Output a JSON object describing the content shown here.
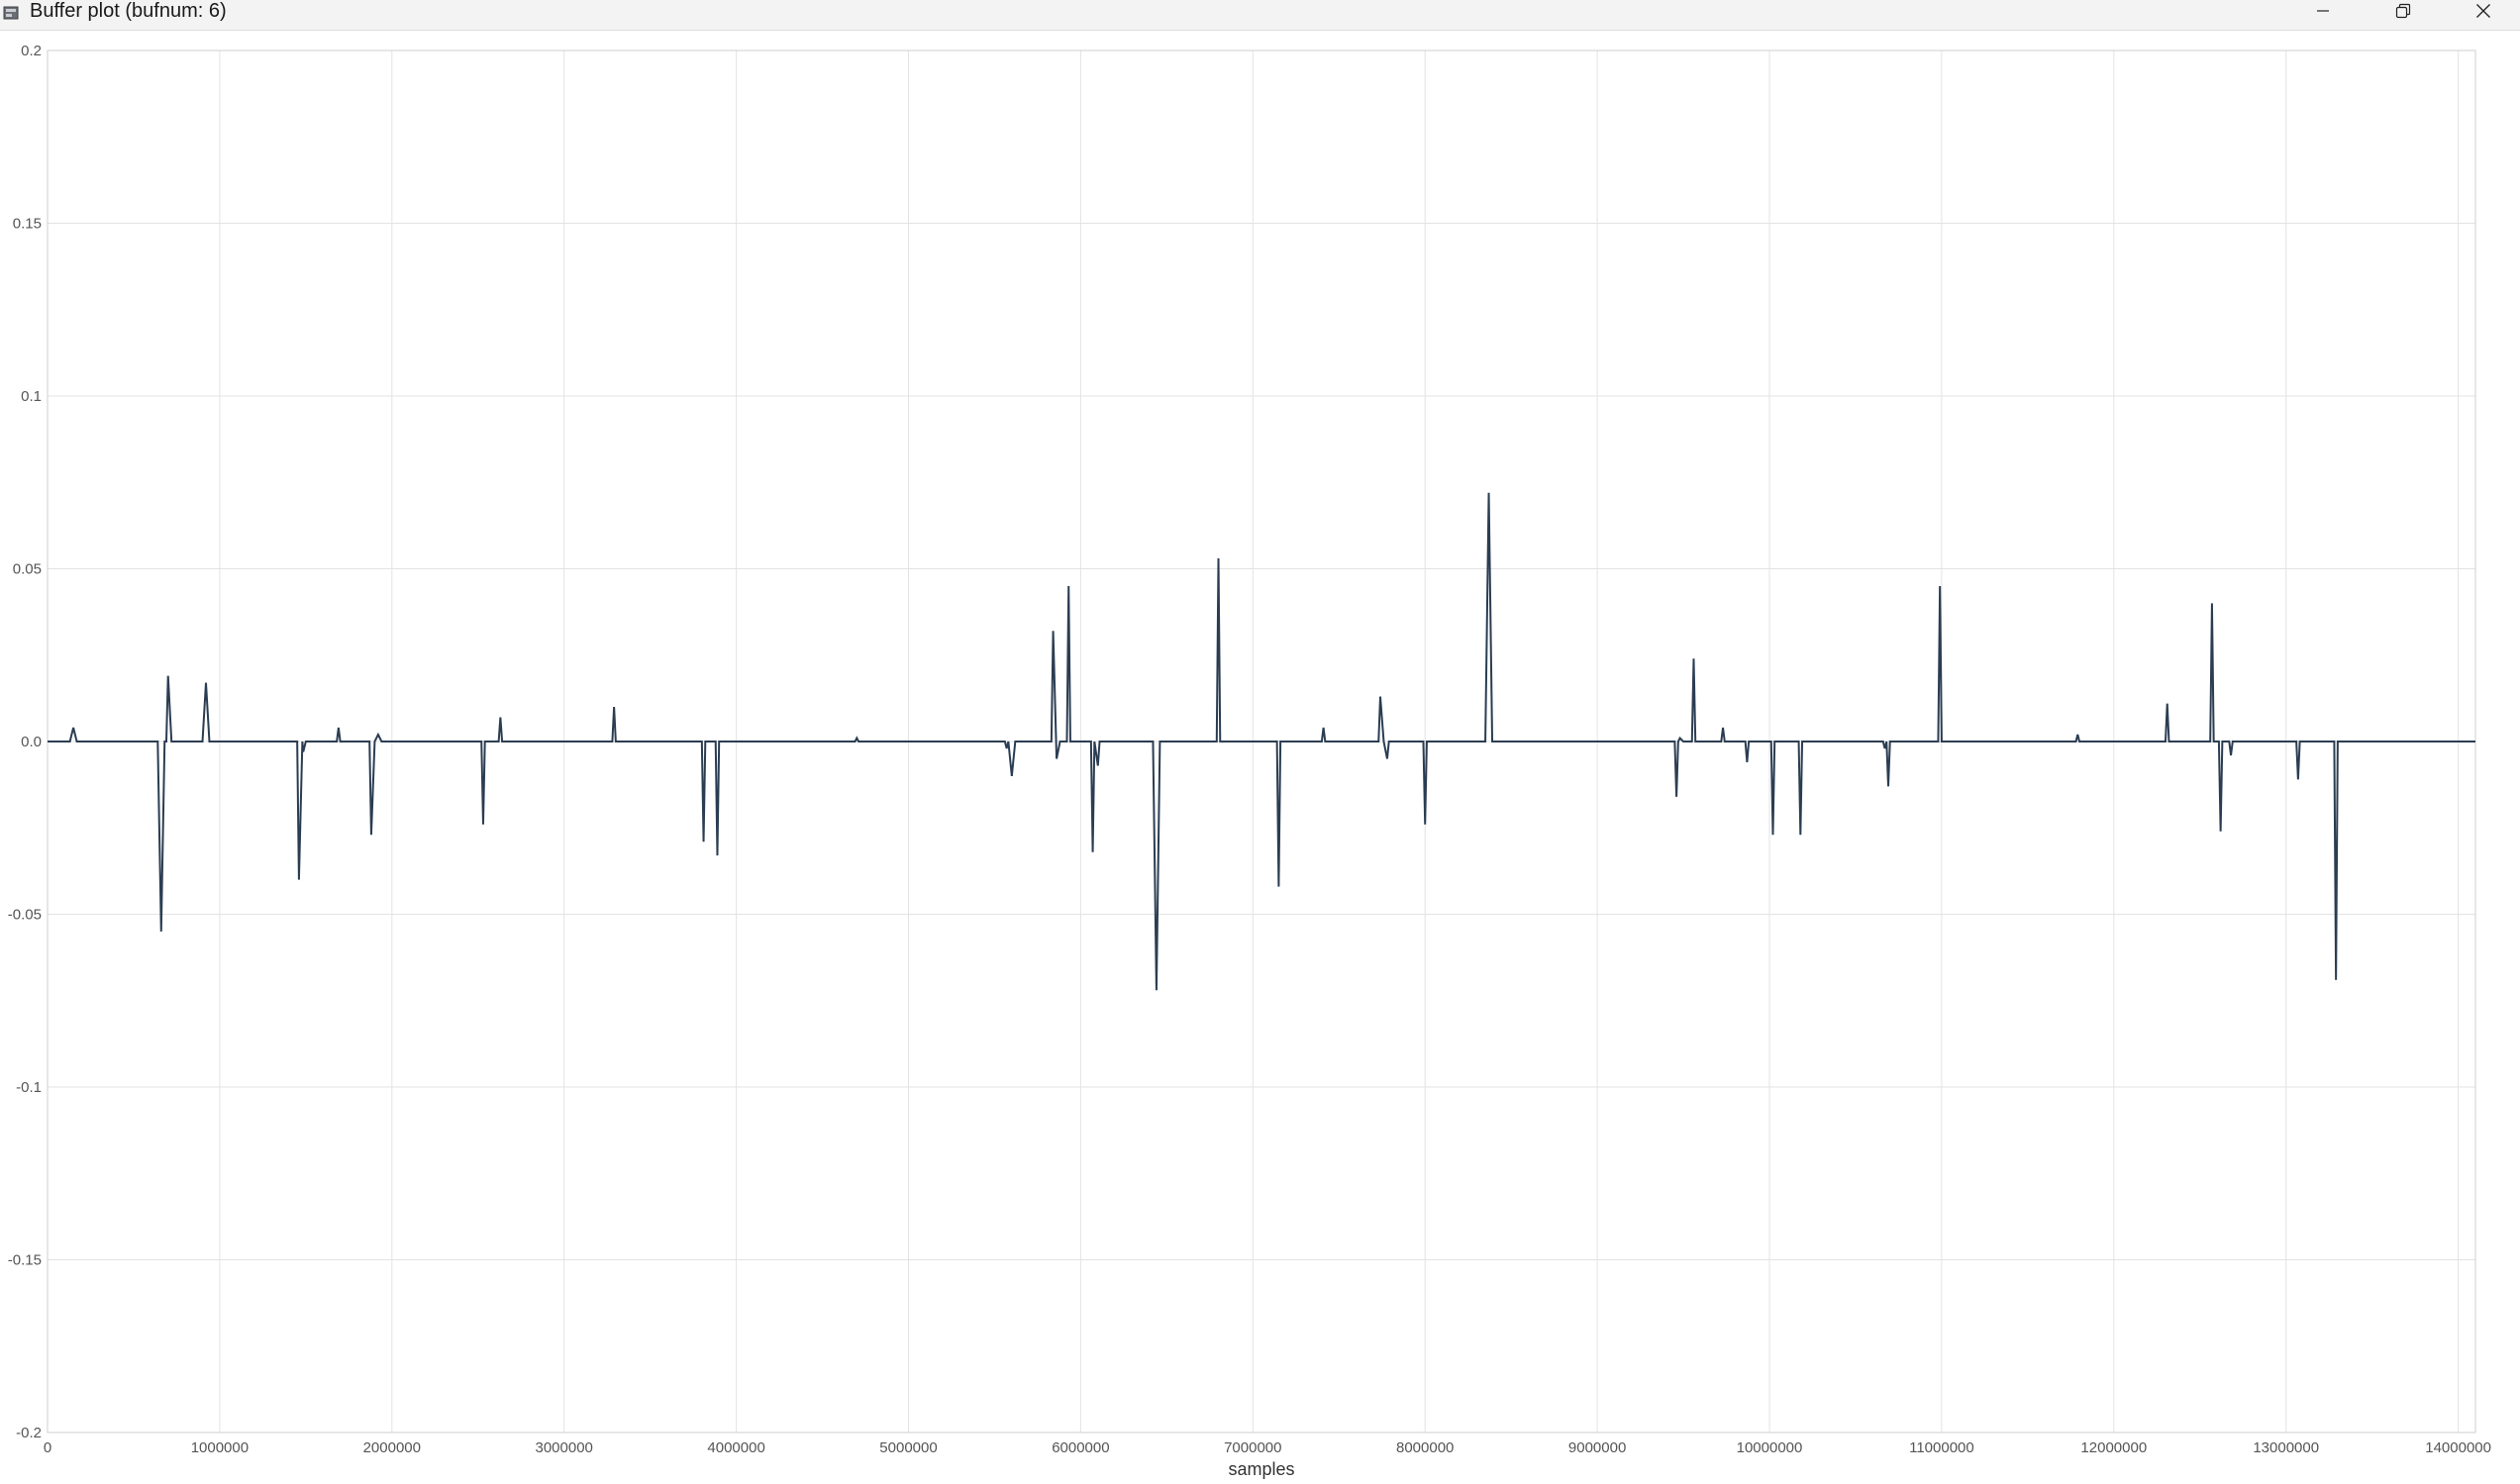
{
  "window": {
    "title": "Buffer plot (bufnum: 6)",
    "controls": [
      "minimize-icon",
      "restore-icon",
      "close-icon"
    ]
  },
  "chart_data": {
    "type": "line",
    "title": "",
    "xlabel": "samples",
    "ylabel": "",
    "xlim": [
      0,
      14100000
    ],
    "ylim": [
      -0.2,
      0.2
    ],
    "grid": true,
    "x_ticks": [
      0,
      1000000,
      2000000,
      3000000,
      4000000,
      5000000,
      6000000,
      7000000,
      8000000,
      9000000,
      10000000,
      11000000,
      12000000,
      13000000,
      14000000
    ],
    "x_tick_labels": [
      "0",
      "1000000",
      "2000000",
      "3000000",
      "4000000",
      "5000000",
      "6000000",
      "7000000",
      "8000000",
      "9000000",
      "10000000",
      "11000000",
      "12000000",
      "13000000",
      "14000000"
    ],
    "y_ticks": [
      0.2,
      0.15,
      0.1,
      0.05,
      0.0,
      -0.05,
      -0.1,
      -0.15,
      -0.2
    ],
    "y_tick_labels": [
      "0.2",
      "0.15",
      "0.1",
      "0.05",
      "0.0",
      "-0.05",
      "-0.1",
      "-0.15",
      "-0.2"
    ],
    "line_color": "#2b3d52",
    "grid_color": "#e3e3e3",
    "series": [
      {
        "values": [
          [
            0,
            0
          ],
          [
            130000,
            0
          ],
          [
            150000,
            0.004
          ],
          [
            170000,
            0
          ],
          [
            640000,
            0
          ],
          [
            660000,
            -0.055
          ],
          [
            680000,
            0
          ],
          [
            690000,
            0
          ],
          [
            700000,
            0.019
          ],
          [
            720000,
            0
          ],
          [
            900000,
            0
          ],
          [
            920000,
            0.017
          ],
          [
            940000,
            0
          ],
          [
            1450000,
            0
          ],
          [
            1460000,
            -0.04
          ],
          [
            1480000,
            0
          ],
          [
            1485000,
            -0.003
          ],
          [
            1500000,
            0
          ],
          [
            1680000,
            0
          ],
          [
            1690000,
            0.004
          ],
          [
            1700000,
            0
          ],
          [
            1870000,
            0
          ],
          [
            1880000,
            -0.027
          ],
          [
            1900000,
            0
          ],
          [
            1920000,
            0.002
          ],
          [
            1940000,
            0
          ],
          [
            2520000,
            0
          ],
          [
            2530000,
            -0.024
          ],
          [
            2540000,
            0
          ],
          [
            2620000,
            0
          ],
          [
            2630000,
            0.007
          ],
          [
            2640000,
            0
          ],
          [
            3280000,
            0
          ],
          [
            3290000,
            0.01
          ],
          [
            3300000,
            0
          ],
          [
            3800000,
            0
          ],
          [
            3810000,
            -0.029
          ],
          [
            3820000,
            0
          ],
          [
            3880000,
            0
          ],
          [
            3890000,
            -0.033
          ],
          [
            3900000,
            0
          ],
          [
            4690000,
            0
          ],
          [
            4700000,
            0.001
          ],
          [
            4710000,
            0
          ],
          [
            5560000,
            0
          ],
          [
            5570000,
            -0.002
          ],
          [
            5580000,
            0
          ],
          [
            5600000,
            -0.01
          ],
          [
            5620000,
            0
          ],
          [
            5830000,
            0
          ],
          [
            5840000,
            0.032
          ],
          [
            5860000,
            -0.005
          ],
          [
            5880000,
            0
          ],
          [
            5920000,
            0
          ],
          [
            5930000,
            0.045
          ],
          [
            5940000,
            0
          ],
          [
            6060000,
            0
          ],
          [
            6070000,
            -0.032
          ],
          [
            6080000,
            0
          ],
          [
            6100000,
            -0.007
          ],
          [
            6110000,
            0
          ],
          [
            6420000,
            0
          ],
          [
            6440000,
            -0.072
          ],
          [
            6460000,
            0
          ],
          [
            6790000,
            0
          ],
          [
            6800000,
            0.053
          ],
          [
            6810000,
            0
          ],
          [
            7140000,
            0
          ],
          [
            7150000,
            -0.042
          ],
          [
            7160000,
            0
          ],
          [
            7400000,
            0
          ],
          [
            7410000,
            0.004
          ],
          [
            7420000,
            0
          ],
          [
            7730000,
            0
          ],
          [
            7740000,
            0.013
          ],
          [
            7760000,
            0
          ],
          [
            7780000,
            -0.005
          ],
          [
            7790000,
            0
          ],
          [
            7990000,
            0
          ],
          [
            8000000,
            -0.024
          ],
          [
            8010000,
            0
          ],
          [
            8350000,
            0
          ],
          [
            8370000,
            0.072
          ],
          [
            8390000,
            0
          ],
          [
            9450000,
            0
          ],
          [
            9460000,
            -0.016
          ],
          [
            9470000,
            0
          ],
          [
            9480000,
            0.001
          ],
          [
            9500000,
            0
          ],
          [
            9550000,
            0
          ],
          [
            9560000,
            0.024
          ],
          [
            9570000,
            0
          ],
          [
            9720000,
            0
          ],
          [
            9730000,
            0.004
          ],
          [
            9740000,
            0
          ],
          [
            9860000,
            0
          ],
          [
            9870000,
            -0.006
          ],
          [
            9880000,
            0
          ],
          [
            10010000,
            0
          ],
          [
            10020000,
            -0.027
          ],
          [
            10030000,
            0
          ],
          [
            10170000,
            0
          ],
          [
            10180000,
            -0.027
          ],
          [
            10190000,
            0
          ],
          [
            10660000,
            0
          ],
          [
            10670000,
            -0.002
          ],
          [
            10680000,
            0
          ],
          [
            10690000,
            -0.013
          ],
          [
            10700000,
            0
          ],
          [
            10980000,
            0
          ],
          [
            10990000,
            0.045
          ],
          [
            11000000,
            0
          ],
          [
            11780000,
            0
          ],
          [
            11790000,
            0.002
          ],
          [
            11800000,
            0
          ],
          [
            12300000,
            0
          ],
          [
            12310000,
            0.011
          ],
          [
            12320000,
            0
          ],
          [
            12560000,
            0
          ],
          [
            12570000,
            0.04
          ],
          [
            12580000,
            0
          ],
          [
            12610000,
            0
          ],
          [
            12620000,
            -0.026
          ],
          [
            12630000,
            0
          ],
          [
            12670000,
            0
          ],
          [
            12680000,
            -0.004
          ],
          [
            12690000,
            0
          ],
          [
            13060000,
            0
          ],
          [
            13070000,
            -0.011
          ],
          [
            13080000,
            0
          ],
          [
            13280000,
            0
          ],
          [
            13290000,
            -0.069
          ],
          [
            13300000,
            0
          ],
          [
            14100000,
            0
          ]
        ]
      }
    ]
  }
}
